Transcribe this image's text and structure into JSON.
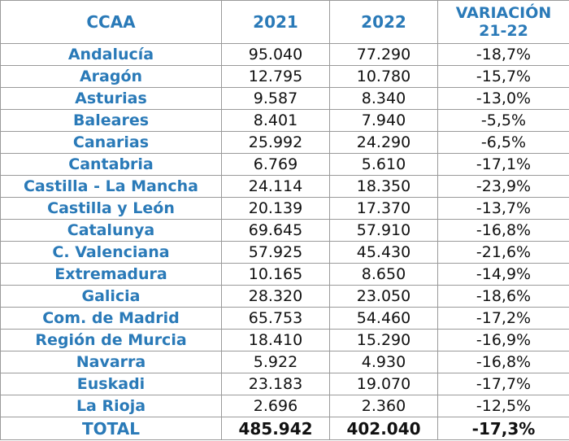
{
  "table": {
    "headers": {
      "region": "CCAA",
      "year1": "2021",
      "year2": "2022",
      "variation_line1": "VARIACIÓN",
      "variation_line2": "21-22"
    },
    "rows": [
      {
        "name": "Andalucía",
        "v2021": "95.040",
        "v2022": "77.290",
        "var": "-18,7%"
      },
      {
        "name": "Aragón",
        "v2021": "12.795",
        "v2022": "10.780",
        "var": "-15,7%"
      },
      {
        "name": "Asturias",
        "v2021": "9.587",
        "v2022": "8.340",
        "var": "-13,0%"
      },
      {
        "name": "Baleares",
        "v2021": "8.401",
        "v2022": "7.940",
        "var": "-5,5%"
      },
      {
        "name": "Canarias",
        "v2021": "25.992",
        "v2022": "24.290",
        "var": "-6,5%"
      },
      {
        "name": "Cantabria",
        "v2021": "6.769",
        "v2022": "5.610",
        "var": "-17,1%"
      },
      {
        "name": "Castilla - La Mancha",
        "v2021": "24.114",
        "v2022": "18.350",
        "var": "-23,9%"
      },
      {
        "name": "Castilla y León",
        "v2021": "20.139",
        "v2022": "17.370",
        "var": "-13,7%"
      },
      {
        "name": "Catalunya",
        "v2021": "69.645",
        "v2022": "57.910",
        "var": "-16,8%"
      },
      {
        "name": "C. Valenciana",
        "v2021": "57.925",
        "v2022": "45.430",
        "var": "-21,6%"
      },
      {
        "name": "Extremadura",
        "v2021": "10.165",
        "v2022": "8.650",
        "var": "-14,9%"
      },
      {
        "name": "Galicia",
        "v2021": "28.320",
        "v2022": "23.050",
        "var": "-18,6%"
      },
      {
        "name": "Com. de Madrid",
        "v2021": "65.753",
        "v2022": "54.460",
        "var": "-17,2%"
      },
      {
        "name": "Región de Murcia",
        "v2021": "18.410",
        "v2022": "15.290",
        "var": "-16,9%"
      },
      {
        "name": "Navarra",
        "v2021": "5.922",
        "v2022": "4.930",
        "var": "-16,8%"
      },
      {
        "name": "Euskadi",
        "v2021": "23.183",
        "v2022": "19.070",
        "var": "-17,7%"
      },
      {
        "name": "La Rioja",
        "v2021": "2.696",
        "v2022": "2.360",
        "var": "-12,5%"
      }
    ],
    "total": {
      "name": "TOTAL",
      "v2021": "485.942",
      "v2022": "402.040",
      "var": "-17,3%"
    }
  },
  "colors": {
    "header_text": "#2a7ab8",
    "region_text": "#2a7ab8",
    "value_text": "#111111",
    "grid": "#9a9a9a"
  }
}
